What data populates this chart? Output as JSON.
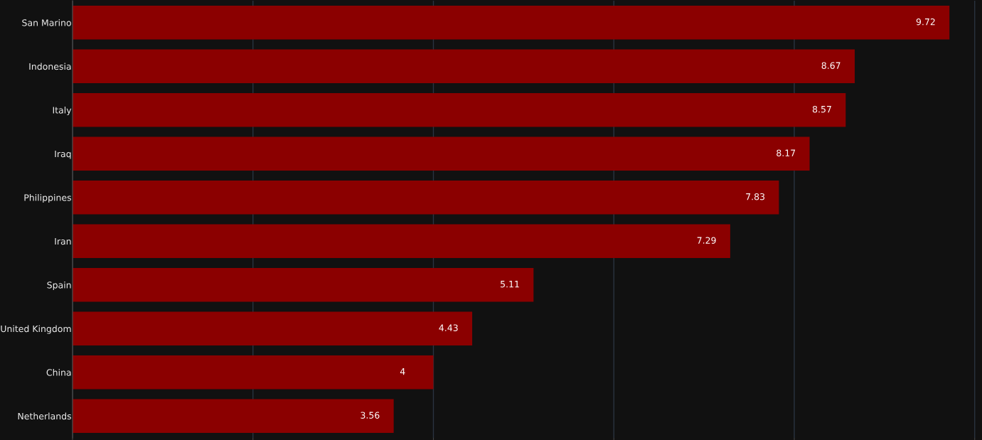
{
  "chart_data": {
    "type": "bar",
    "orientation": "horizontal",
    "categories": [
      "San Marino",
      "Indonesia",
      "Italy",
      "Iraq",
      "Philippines",
      "Iran",
      "Spain",
      "United Kingdom",
      "China",
      "Netherlands"
    ],
    "values": [
      9.72,
      8.67,
      8.57,
      8.17,
      7.83,
      7.29,
      5.11,
      4.43,
      4,
      3.56
    ],
    "color": "#8b0000",
    "xlim": [
      0,
      10.07
    ],
    "xticks": [
      {
        "value": 0,
        "label": null
      },
      {
        "value": 2,
        "label": null
      },
      {
        "value": 4,
        "label": null
      },
      {
        "value": 6,
        "label": null
      },
      {
        "value": 8,
        "label": null
      },
      {
        "value": 10,
        "label": null
      }
    ],
    "tick_labels": "y",
    "grid": "x",
    "data_labels": true
  }
}
